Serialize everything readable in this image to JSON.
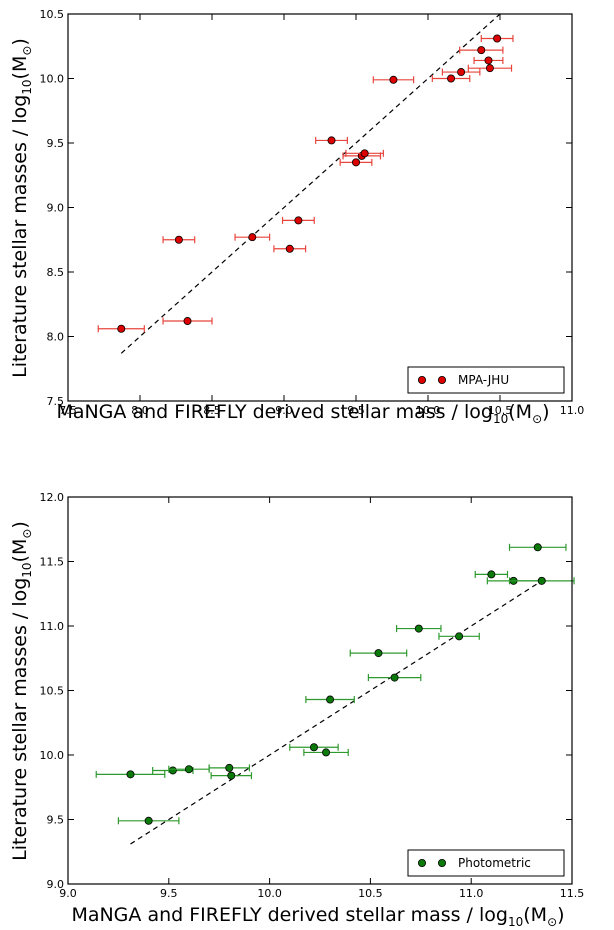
{
  "chart_data": [
    {
      "type": "scatter",
      "title": "",
      "xlabel": "MaNGA and FIREFLY derived stellar mass / log",
      "xlabel_sub": "10",
      "xlabel_tail": "(M",
      "xlabel_end": ")",
      "ylabel": "Literature stellar masses / log",
      "ylabel_sub": "10",
      "ylabel_tail": "(M",
      "ylabel_end": ")",
      "xlim": [
        7.5,
        11.0
      ],
      "ylim": [
        7.5,
        10.5
      ],
      "xticks": [
        "7.5",
        "8.0",
        "8.5",
        "9.0",
        "9.5",
        "10.0",
        "10.5",
        "11.0"
      ],
      "yticks": [
        "7.5",
        "8.0",
        "8.5",
        "9.0",
        "9.5",
        "10.0",
        "10.5"
      ],
      "grid": false,
      "legend_position": "bottom-right",
      "line": {
        "style": "dashed",
        "x": [
          7.87,
          10.5
        ],
        "y": [
          7.87,
          10.5
        ]
      },
      "series": [
        {
          "name": "MPA-JHU",
          "color": "#dd0000",
          "error_color": "#e8453c",
          "points": [
            {
              "x": 7.87,
              "y": 8.06,
              "xerr": 0.16
            },
            {
              "x": 8.33,
              "y": 8.12,
              "xerr": 0.17
            },
            {
              "x": 8.27,
              "y": 8.75,
              "xerr": 0.11
            },
            {
              "x": 8.78,
              "y": 8.77,
              "xerr": 0.12
            },
            {
              "x": 9.04,
              "y": 8.68,
              "xerr": 0.11
            },
            {
              "x": 9.1,
              "y": 8.9,
              "xerr": 0.11
            },
            {
              "x": 9.33,
              "y": 9.52,
              "xerr": 0.11
            },
            {
              "x": 9.54,
              "y": 9.4,
              "xerr": 0.13
            },
            {
              "x": 9.56,
              "y": 9.42,
              "xerr": 0.13
            },
            {
              "x": 9.5,
              "y": 9.35,
              "xerr": 0.11
            },
            {
              "x": 9.76,
              "y": 9.99,
              "xerr": 0.14
            },
            {
              "x": 10.16,
              "y": 10.0,
              "xerr": 0.13
            },
            {
              "x": 10.23,
              "y": 10.05,
              "xerr": 0.13
            },
            {
              "x": 10.37,
              "y": 10.22,
              "xerr": 0.15
            },
            {
              "x": 10.48,
              "y": 10.31,
              "xerr": 0.11
            },
            {
              "x": 10.42,
              "y": 10.14,
              "xerr": 0.1
            },
            {
              "x": 10.43,
              "y": 10.08,
              "xerr": 0.15
            }
          ]
        }
      ]
    },
    {
      "type": "scatter",
      "title": "",
      "xlabel": "MaNGA and FIREFLY derived stellar mass / log",
      "xlabel_sub": "10",
      "xlabel_tail": "(M",
      "xlabel_end": ")",
      "ylabel": "Literature stellar masses / log",
      "ylabel_sub": "10",
      "ylabel_tail": "(M",
      "ylabel_end": ")",
      "xlim": [
        9.0,
        11.5
      ],
      "ylim": [
        9.0,
        12.0
      ],
      "xticks": [
        "9.0",
        "9.5",
        "10.0",
        "10.5",
        "11.0",
        "11.5"
      ],
      "yticks": [
        "9.0",
        "9.5",
        "10.0",
        "10.5",
        "11.0",
        "11.5",
        "12.0"
      ],
      "grid": false,
      "legend_position": "bottom-right",
      "line": {
        "style": "dashed",
        "x": [
          9.31,
          11.35
        ],
        "y": [
          9.31,
          11.35
        ]
      },
      "series": [
        {
          "name": "Photometric",
          "color": "#0b7a0b",
          "error_color": "#2e9a2e",
          "points": [
            {
              "x": 9.31,
              "y": 9.85,
              "xerr": 0.17
            },
            {
              "x": 9.4,
              "y": 9.49,
              "xerr": 0.15
            },
            {
              "x": 9.52,
              "y": 9.88,
              "xerr": 0.1
            },
            {
              "x": 9.6,
              "y": 9.89,
              "xerr": 0.1
            },
            {
              "x": 9.8,
              "y": 9.9,
              "xerr": 0.1
            },
            {
              "x": 9.81,
              "y": 9.84,
              "xerr": 0.1
            },
            {
              "x": 10.22,
              "y": 10.06,
              "xerr": 0.12
            },
            {
              "x": 10.28,
              "y": 10.02,
              "xerr": 0.11
            },
            {
              "x": 10.3,
              "y": 10.43,
              "xerr": 0.12
            },
            {
              "x": 10.54,
              "y": 10.79,
              "xerr": 0.14
            },
            {
              "x": 10.62,
              "y": 10.6,
              "xerr": 0.13
            },
            {
              "x": 10.74,
              "y": 10.98,
              "xerr": 0.11
            },
            {
              "x": 10.94,
              "y": 10.92,
              "xerr": 0.1
            },
            {
              "x": 11.1,
              "y": 11.4,
              "xerr": 0.08
            },
            {
              "x": 11.21,
              "y": 11.35,
              "xerr": 0.13
            },
            {
              "x": 11.35,
              "y": 11.35,
              "xerr": 0.16
            },
            {
              "x": 11.33,
              "y": 11.61,
              "xerr": 0.14
            }
          ]
        }
      ]
    }
  ]
}
